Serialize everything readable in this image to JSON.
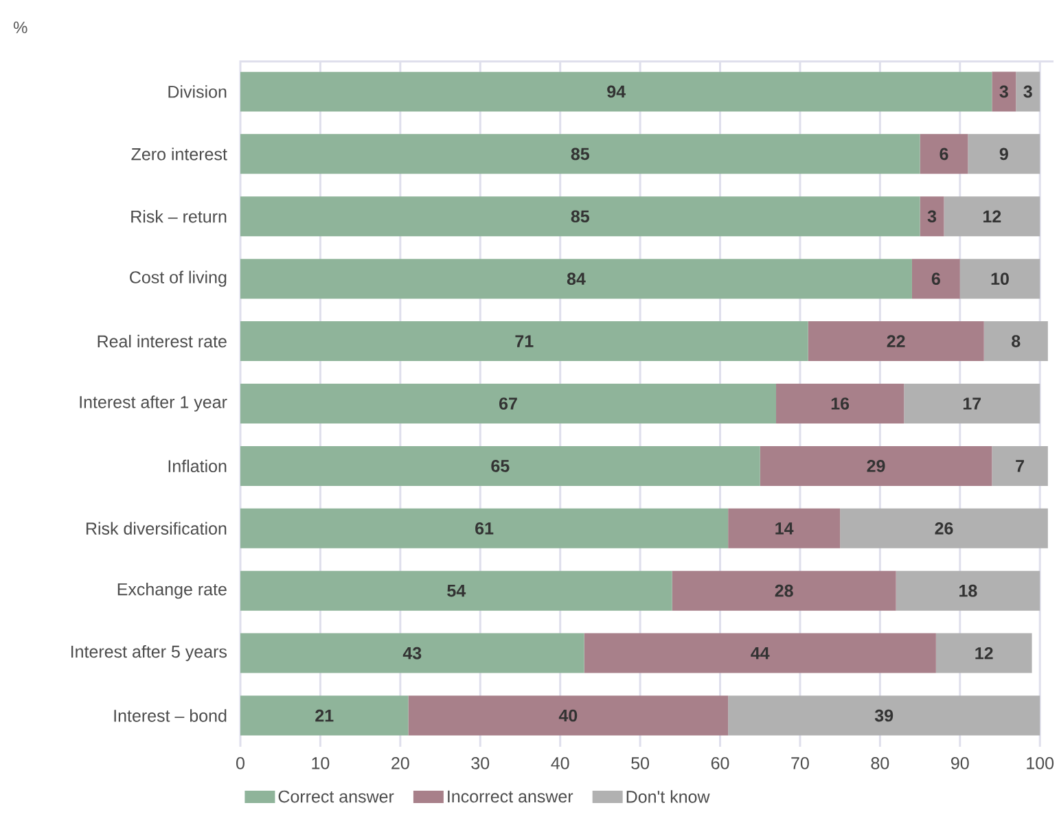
{
  "chart_data": {
    "type": "bar",
    "orientation": "horizontal",
    "stacked": true,
    "ylabel": "%",
    "categories": [
      "Division",
      "Zero interest",
      "Risk – return",
      "Cost of living",
      "Real interest rate",
      "Interest after 1 year",
      "Inflation",
      "Risk diversification",
      "Exchange rate",
      "Interest after 5 years",
      "Interest – bond"
    ],
    "series": [
      {
        "name": "Correct answer",
        "color": "#8fb49a",
        "values": [
          94,
          85,
          85,
          84,
          71,
          67,
          65,
          61,
          54,
          43,
          21
        ]
      },
      {
        "name": "Incorrect answer",
        "color": "#a8808a",
        "values": [
          3,
          6,
          3,
          6,
          22,
          16,
          29,
          14,
          28,
          44,
          40
        ]
      },
      {
        "name": "Don't know",
        "color": "#b1b1b1",
        "values": [
          3,
          9,
          12,
          10,
          8,
          17,
          7,
          26,
          18,
          12,
          39
        ]
      }
    ],
    "xlim": [
      0,
      101.7
    ],
    "xticks": [
      0,
      10,
      20,
      30,
      40,
      50,
      60,
      70,
      80,
      90,
      100
    ],
    "grid": "x",
    "legend": "bottom",
    "data_labels": true
  }
}
